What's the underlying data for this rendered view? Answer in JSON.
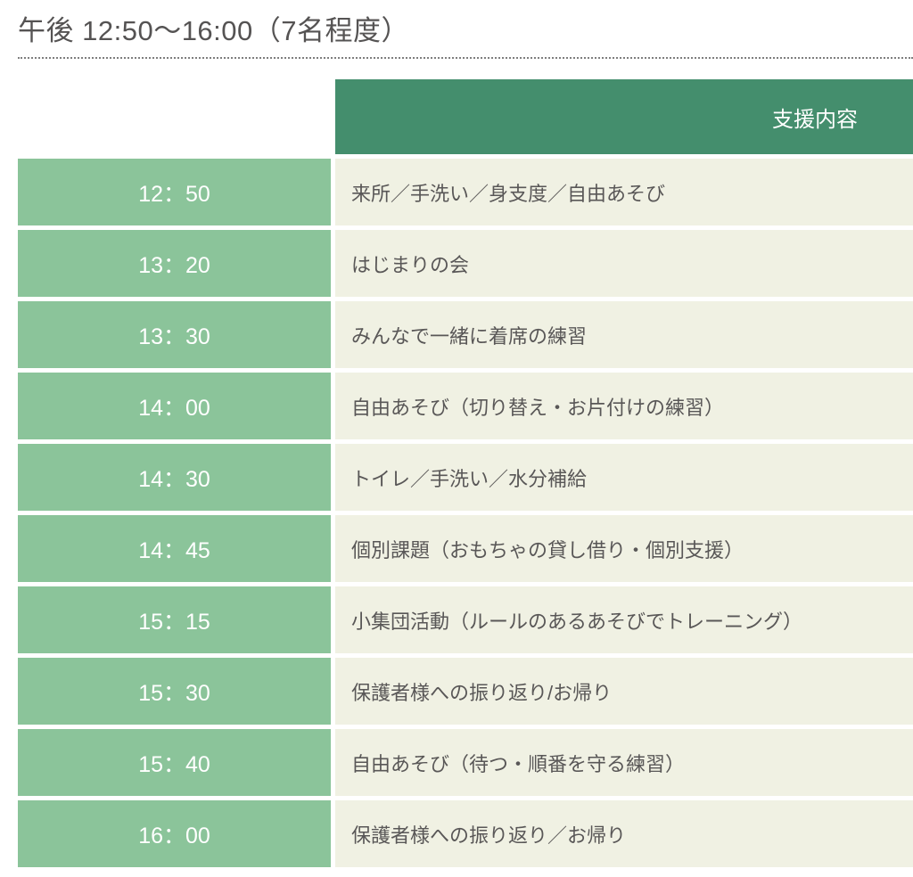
{
  "title": "午後 12:50〜16:00（7名程度）",
  "colors": {
    "header_green": "#448e6d",
    "time_cell_green": "#8bc49a",
    "content_cell_beige": "#f0f1e3",
    "text_dark_gray": "#595757",
    "title_gray": "#555353",
    "dotted_rule_gray": "#7e7e7e",
    "cell_text_white": "#ffffff"
  },
  "table": {
    "support_header": "支援内容",
    "rows": [
      {
        "time": "12：50",
        "content": "来所／手洗い／身支度／自由あそび"
      },
      {
        "time": "13：20",
        "content": "はじまりの会"
      },
      {
        "time": "13：30",
        "content": "みんなで一緒に着席の練習"
      },
      {
        "time": "14：00",
        "content": "自由あそび（切り替え・お片付けの練習）"
      },
      {
        "time": "14：30",
        "content": "トイレ／手洗い／水分補給"
      },
      {
        "time": "14：45",
        "content": "個別課題（おもちゃの貸し借り・個別支援）"
      },
      {
        "time": "15：15",
        "content": "小集団活動（ルールのあるあそびでトレーニング）"
      },
      {
        "time": "15：30",
        "content": "保護者様への振り返り/お帰り"
      },
      {
        "time": "15：40",
        "content": "自由あそび（待つ・順番を守る練習）"
      },
      {
        "time": "16：00",
        "content": "保護者様への振り返り／お帰り"
      }
    ]
  }
}
